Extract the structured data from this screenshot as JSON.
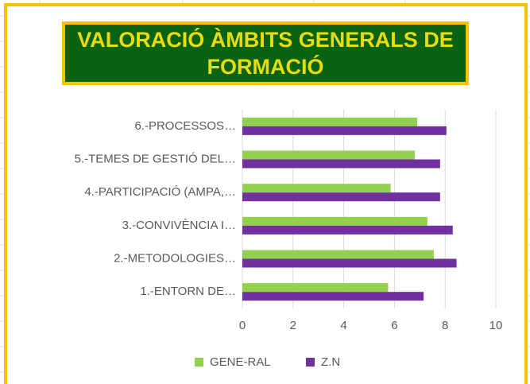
{
  "chart_data": {
    "type": "barh",
    "title": "VALORACIÓ ÀMBITS GENERALS DE FORMACIÓ",
    "categories": [
      "1.-ENTORN DE…",
      "2.-METODOLOGIES…",
      "3.-CONVIVÈNCIA I…",
      "4.-PARTICIPACIÓ (AMPA,…",
      "5.-TEMES DE GESTIÓ DEL…",
      "6.-PROCESSOS…"
    ],
    "series": [
      {
        "name": "GENE-RAL",
        "color": "#92d050",
        "values": [
          5.75,
          7.55,
          7.3,
          5.85,
          6.8,
          6.9
        ]
      },
      {
        "name": "Z.N",
        "color": "#7030a0",
        "values": [
          7.15,
          8.45,
          8.3,
          7.8,
          7.8,
          8.05
        ]
      }
    ],
    "xlim": [
      0,
      10
    ],
    "xticks": [
      0,
      2,
      4,
      6,
      8,
      10
    ],
    "grid": true,
    "legend": "bottom"
  }
}
